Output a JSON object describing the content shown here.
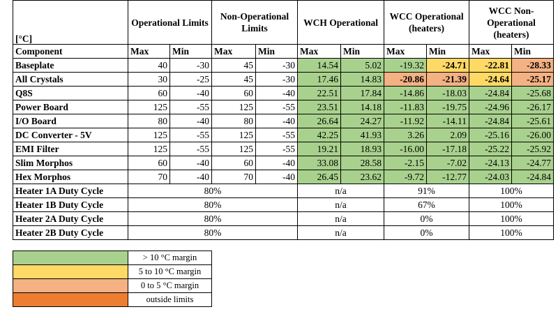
{
  "table": {
    "unit": "[°C]",
    "groups": [
      "Operational Limits",
      "Non-Operational Limits",
      "WCH Operational",
      "WCC Operational (heaters)",
      "WCC Non-Operational (heaters)"
    ],
    "component_header": "Component",
    "sub_headers": [
      "Max",
      "Min",
      "Max",
      "Min",
      "Max",
      "Min",
      "Max",
      "Min",
      "Max",
      "Min"
    ],
    "rows": [
      {
        "component": "Baseplate",
        "cells": [
          "40",
          "-30",
          "45",
          "-30",
          "14.54",
          "5.02",
          "-19.32",
          "-24.71",
          "-22.81",
          "-28.33"
        ],
        "colors": [
          null,
          null,
          null,
          null,
          "#a9d18e",
          "#a9d18e",
          "#a9d18e",
          "#ffd966",
          "#ffd966",
          "#f4b183"
        ]
      },
      {
        "component": "All Crystals",
        "cells": [
          "30",
          "-25",
          "45",
          "-30",
          "17.46",
          "14.83",
          "-20.86",
          "-21.39",
          "-24.64",
          "-25.17"
        ],
        "colors": [
          null,
          null,
          null,
          null,
          "#a9d18e",
          "#a9d18e",
          "#f4b183",
          "#f4b183",
          "#ffd966",
          "#f4b183"
        ]
      },
      {
        "component": "Q8S",
        "cells": [
          "60",
          "-40",
          "60",
          "-40",
          "22.51",
          "17.84",
          "-14.86",
          "-18.03",
          "-24.84",
          "-25.68"
        ],
        "colors": [
          null,
          null,
          null,
          null,
          "#a9d18e",
          "#a9d18e",
          "#a9d18e",
          "#a9d18e",
          "#a9d18e",
          "#a9d18e"
        ]
      },
      {
        "component": "Power Board",
        "cells": [
          "125",
          "-55",
          "125",
          "-55",
          "23.51",
          "14.18",
          "-11.83",
          "-19.75",
          "-24.96",
          "-26.17"
        ],
        "colors": [
          null,
          null,
          null,
          null,
          "#a9d18e",
          "#a9d18e",
          "#a9d18e",
          "#a9d18e",
          "#a9d18e",
          "#a9d18e"
        ]
      },
      {
        "component": "I/O Board",
        "cells": [
          "80",
          "-40",
          "80",
          "-40",
          "26.64",
          "24.27",
          "-11.92",
          "-14.11",
          "-24.84",
          "-25.61"
        ],
        "colors": [
          null,
          null,
          null,
          null,
          "#a9d18e",
          "#a9d18e",
          "#a9d18e",
          "#a9d18e",
          "#a9d18e",
          "#a9d18e"
        ]
      },
      {
        "component": "DC Converter - 5V",
        "cells": [
          "125",
          "-55",
          "125",
          "-55",
          "42.25",
          "41.93",
          "3.26",
          "2.09",
          "-25.16",
          "-26.00"
        ],
        "colors": [
          null,
          null,
          null,
          null,
          "#a9d18e",
          "#a9d18e",
          "#a9d18e",
          "#a9d18e",
          "#a9d18e",
          "#a9d18e"
        ]
      },
      {
        "component": "EMI Filter",
        "cells": [
          "125",
          "-55",
          "125",
          "-55",
          "19.21",
          "18.93",
          "-16.00",
          "-17.18",
          "-25.22",
          "-25.92"
        ],
        "colors": [
          null,
          null,
          null,
          null,
          "#a9d18e",
          "#a9d18e",
          "#a9d18e",
          "#a9d18e",
          "#a9d18e",
          "#a9d18e"
        ]
      },
      {
        "component": "Slim Morphos",
        "cells": [
          "60",
          "-40",
          "60",
          "-40",
          "33.08",
          "28.58",
          "-2.15",
          "-7.02",
          "-24.13",
          "-24.77"
        ],
        "colors": [
          null,
          null,
          null,
          null,
          "#a9d18e",
          "#a9d18e",
          "#a9d18e",
          "#a9d18e",
          "#a9d18e",
          "#a9d18e"
        ]
      },
      {
        "component": "Hex Morphos",
        "cells": [
          "70",
          "-40",
          "70",
          "-40",
          "26.45",
          "23.62",
          "-9.72",
          "-12.77",
          "-24.03",
          "-24.84"
        ],
        "colors": [
          null,
          null,
          null,
          null,
          "#a9d18e",
          "#a9d18e",
          "#a9d18e",
          "#a9d18e",
          "#a9d18e",
          "#a9d18e"
        ]
      }
    ],
    "duty_rows": [
      {
        "component": "Heater 1A Duty Cycle",
        "cells": [
          "80%",
          "n/a",
          "91%",
          "100%"
        ]
      },
      {
        "component": "Heater 1B Duty Cycle",
        "cells": [
          "80%",
          "n/a",
          "67%",
          "100%"
        ]
      },
      {
        "component": "Heater 2A Duty Cycle",
        "cells": [
          "80%",
          "n/a",
          "0%",
          "100%"
        ]
      },
      {
        "component": "Heater 2B Duty Cycle",
        "cells": [
          "80%",
          "n/a",
          "0%",
          "100%"
        ]
      }
    ]
  },
  "legend": [
    {
      "color": "#a9d18e",
      "label": "> 10 °C margin"
    },
    {
      "color": "#ffd966",
      "label": "5 to 10 °C margin"
    },
    {
      "color": "#f4b183",
      "label": "0 to 5 °C margin"
    },
    {
      "color": "#ed7d31",
      "label": "outside limits"
    }
  ]
}
